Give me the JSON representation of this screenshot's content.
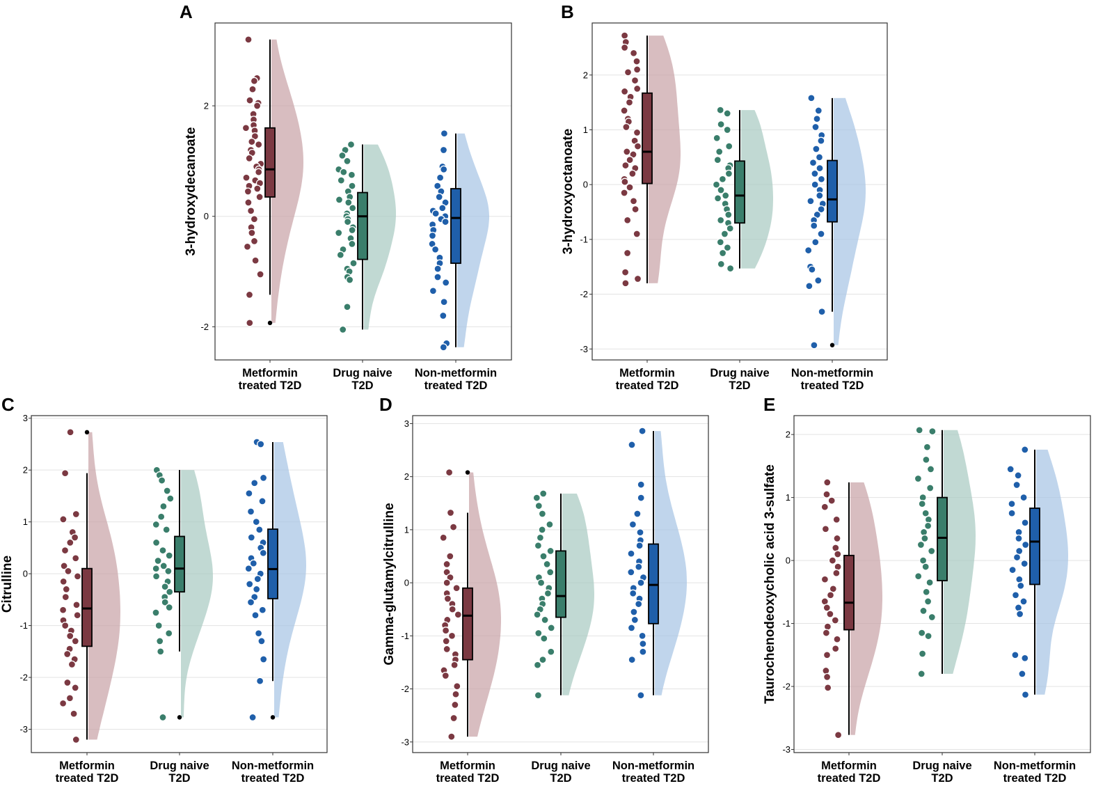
{
  "figure": {
    "title": ""
  },
  "colors": {
    "groups": [
      "#7B3942",
      "#3A7E6B",
      "#1F5FAA"
    ],
    "violins": [
      "#C9A3A8",
      "#A9CBC2",
      "#A7C5E5"
    ]
  },
  "groups": [
    "Metformin treated T2D",
    "Drug naive T2D",
    "Non-metformin treated T2D"
  ],
  "chart_data": [
    {
      "panel": "A",
      "type": "raincloud",
      "ylabel": "3-hydroxydecanoate",
      "ylim": [
        -2.6,
        3.5
      ],
      "yticks": [
        -2,
        0,
        2
      ],
      "categories": [
        "Metformin\ntreated T2D",
        "Drug naive\nT2D",
        "Non-metformin\ntreated T2D"
      ],
      "series": [
        {
          "name": "Metformin treated T2D",
          "box": {
            "q1": 0.35,
            "median": 0.85,
            "q3": 1.6,
            "whisker_low": -1.42,
            "whisker_high": 3.2
          },
          "outliers": [
            -1.93
          ],
          "points": [
            3.2,
            2.5,
            2.45,
            2.3,
            2.1,
            2.05,
            2.0,
            1.85,
            1.75,
            1.65,
            1.6,
            1.55,
            1.45,
            1.35,
            1.3,
            1.2,
            1.15,
            1.05,
            0.95,
            0.9,
            0.85,
            0.8,
            0.7,
            0.65,
            0.6,
            0.55,
            0.5,
            0.45,
            0.35,
            0.25,
            0.1,
            -0.05,
            -0.2,
            -0.3,
            -0.45,
            -0.55,
            -0.8,
            -1.05,
            -1.42,
            -1.93
          ]
        },
        {
          "name": "Drug naive T2D",
          "box": {
            "q1": -0.78,
            "median": 0.0,
            "q3": 0.43,
            "whisker_low": -2.05,
            "whisker_high": 1.3
          },
          "outliers": [],
          "points": [
            1.3,
            1.2,
            1.1,
            1.0,
            0.85,
            0.8,
            0.75,
            0.65,
            0.55,
            0.45,
            0.35,
            0.3,
            0.25,
            0.15,
            0.05,
            0.0,
            -0.05,
            -0.1,
            -0.2,
            -0.25,
            -0.3,
            -0.4,
            -0.5,
            -0.6,
            -0.7,
            -0.85,
            -0.95,
            -1.0,
            -1.1,
            -1.15,
            -1.64,
            -2.05
          ]
        },
        {
          "name": "Non-metformin treated T2D",
          "box": {
            "q1": -0.85,
            "median": -0.03,
            "q3": 0.5,
            "whisker_low": -2.37,
            "whisker_high": 1.5
          },
          "outliers": [],
          "points": [
            1.5,
            1.2,
            0.9,
            0.85,
            0.7,
            0.55,
            0.45,
            0.35,
            0.25,
            0.15,
            0.1,
            0.05,
            0.0,
            -0.05,
            -0.1,
            -0.15,
            -0.25,
            -0.35,
            -0.5,
            -0.6,
            -0.75,
            -0.85,
            -0.95,
            -1.1,
            -1.2,
            -1.35,
            -1.55,
            -1.8,
            -2.3,
            -2.37
          ]
        }
      ]
    },
    {
      "panel": "B",
      "type": "raincloud",
      "ylabel": "3-hydroxyoctanoate",
      "ylim": [
        -3.2,
        2.95
      ],
      "yticks": [
        -3,
        -2,
        -1,
        0,
        1,
        2
      ],
      "categories": [
        "Metformin\ntreated T2D",
        "Drug naive\nT2D",
        "Non-metformin\ntreated T2D"
      ],
      "series": [
        {
          "name": "Metformin treated T2D",
          "box": {
            "q1": 0.02,
            "median": 0.6,
            "q3": 1.67,
            "whisker_low": -1.8,
            "whisker_high": 2.72
          },
          "outliers": [],
          "points": [
            2.72,
            2.6,
            2.5,
            2.4,
            2.25,
            2.1,
            2.05,
            1.9,
            1.75,
            1.7,
            1.6,
            1.5,
            1.35,
            1.2,
            1.15,
            1.05,
            0.95,
            0.8,
            0.7,
            0.6,
            0.55,
            0.45,
            0.35,
            0.3,
            0.2,
            0.1,
            0.05,
            -0.05,
            -0.15,
            -0.3,
            -0.45,
            -0.65,
            -0.9,
            -1.25,
            -1.6,
            -1.72,
            -1.8
          ]
        },
        {
          "name": "Drug naive T2D",
          "box": {
            "q1": -0.7,
            "median": -0.2,
            "q3": 0.43,
            "whisker_low": -1.53,
            "whisker_high": 1.36
          },
          "outliers": [],
          "points": [
            1.36,
            1.3,
            1.1,
            1.0,
            0.85,
            0.7,
            0.6,
            0.45,
            0.35,
            0.3,
            0.2,
            0.1,
            0.0,
            -0.1,
            -0.2,
            -0.25,
            -0.35,
            -0.45,
            -0.55,
            -0.65,
            -0.7,
            -0.8,
            -0.9,
            -1.05,
            -1.15,
            -1.25,
            -1.45,
            -1.53
          ]
        },
        {
          "name": "Non-metformin treated T2D",
          "box": {
            "q1": -0.68,
            "median": -0.27,
            "q3": 0.44,
            "whisker_low": -2.32,
            "whisker_high": 1.58
          },
          "outliers": [
            -2.93
          ],
          "points": [
            1.58,
            1.35,
            1.2,
            1.05,
            0.9,
            0.8,
            0.65,
            0.5,
            0.4,
            0.3,
            0.2,
            0.1,
            0.0,
            -0.1,
            -0.2,
            -0.3,
            -0.35,
            -0.45,
            -0.55,
            -0.65,
            -0.75,
            -0.9,
            -1.05,
            -1.2,
            -1.5,
            -1.55,
            -1.75,
            -1.85,
            -2.32,
            -2.93
          ]
        }
      ]
    },
    {
      "panel": "C",
      "type": "raincloud",
      "ylabel": "Citrulline",
      "ylim": [
        -3.45,
        3.05
      ],
      "yticks": [
        -3,
        -2,
        -1,
        0,
        1,
        2,
        3
      ],
      "categories": [
        "Metformin\ntreated T2D",
        "Drug naive\nT2D",
        "Non-metformin\ntreated T2D"
      ],
      "series": [
        {
          "name": "Metformin treated T2D",
          "box": {
            "q1": -1.4,
            "median": -0.67,
            "q3": 0.1,
            "whisker_low": -3.2,
            "whisker_high": 1.94
          },
          "outliers": [
            2.73
          ],
          "points": [
            2.73,
            1.94,
            1.15,
            1.05,
            0.8,
            0.7,
            0.6,
            0.45,
            0.3,
            0.15,
            0.05,
            -0.05,
            -0.15,
            -0.3,
            -0.45,
            -0.6,
            -0.7,
            -0.8,
            -0.9,
            -1.0,
            -1.1,
            -1.2,
            -1.3,
            -1.45,
            -1.55,
            -1.65,
            -1.75,
            -2.1,
            -2.2,
            -2.4,
            -2.5,
            -2.7,
            -3.2
          ]
        },
        {
          "name": "Drug naive T2D",
          "box": {
            "q1": -0.35,
            "median": 0.1,
            "q3": 0.72,
            "whisker_low": -1.5,
            "whisker_high": 2.0
          },
          "outliers": [
            -2.77
          ],
          "points": [
            2.0,
            1.9,
            1.8,
            1.6,
            1.45,
            1.3,
            1.1,
            0.95,
            0.85,
            0.6,
            0.45,
            0.35,
            0.25,
            0.15,
            0.1,
            0.05,
            -0.05,
            -0.15,
            -0.25,
            -0.35,
            -0.45,
            -0.55,
            -0.65,
            -0.75,
            -1.0,
            -1.15,
            -1.3,
            -1.5,
            -2.77
          ]
        },
        {
          "name": "Non-metformin treated T2D",
          "box": {
            "q1": -0.48,
            "median": 0.09,
            "q3": 0.86,
            "whisker_low": -2.07,
            "whisker_high": 2.54
          },
          "outliers": [
            -2.77
          ],
          "points": [
            2.54,
            2.5,
            1.85,
            1.75,
            1.55,
            1.4,
            1.2,
            1.0,
            0.85,
            0.7,
            0.6,
            0.5,
            0.4,
            0.3,
            0.2,
            0.1,
            0.0,
            -0.1,
            -0.2,
            -0.3,
            -0.45,
            -0.55,
            -0.7,
            -0.8,
            -1.15,
            -1.3,
            -1.65,
            -2.07,
            -2.77
          ]
        }
      ]
    },
    {
      "panel": "D",
      "type": "raincloud",
      "ylabel": "Gamma-glutamylcitrulline",
      "ylim": [
        -3.2,
        3.15
      ],
      "yticks": [
        -3,
        -2,
        -1,
        0,
        1,
        2,
        3
      ],
      "categories": [
        "Metformin\ntreated T2D",
        "Drug naive\nT2D",
        "Non-metformin\ntreated T2D"
      ],
      "series": [
        {
          "name": "Metformin treated T2D",
          "box": {
            "q1": -1.45,
            "median": -0.62,
            "q3": -0.1,
            "whisker_low": -2.9,
            "whisker_high": 1.32
          },
          "outliers": [
            2.08
          ],
          "points": [
            2.08,
            1.32,
            1.05,
            0.85,
            0.5,
            0.35,
            0.2,
            0.1,
            0.0,
            -0.1,
            -0.2,
            -0.3,
            -0.4,
            -0.5,
            -0.6,
            -0.7,
            -0.8,
            -0.9,
            -1.0,
            -1.1,
            -1.25,
            -1.35,
            -1.45,
            -1.55,
            -1.65,
            -1.75,
            -1.95,
            -2.1,
            -2.3,
            -2.55,
            -2.9
          ]
        },
        {
          "name": "Drug naive T2D",
          "box": {
            "q1": -0.65,
            "median": -0.25,
            "q3": 0.6,
            "whisker_low": -2.12,
            "whisker_high": 1.68
          },
          "outliers": [],
          "points": [
            1.68,
            1.6,
            1.45,
            1.3,
            1.1,
            1.0,
            0.85,
            0.7,
            0.6,
            0.5,
            0.35,
            0.2,
            0.1,
            0.0,
            -0.1,
            -0.2,
            -0.3,
            -0.4,
            -0.5,
            -0.6,
            -0.7,
            -0.85,
            -0.95,
            -1.05,
            -1.3,
            -1.45,
            -1.55,
            -2.12
          ]
        },
        {
          "name": "Non-metformin treated T2D",
          "box": {
            "q1": -0.77,
            "median": -0.04,
            "q3": 0.73,
            "whisker_low": -2.12,
            "whisker_high": 2.86
          },
          "outliers": [],
          "points": [
            2.86,
            2.6,
            1.85,
            1.6,
            1.3,
            1.1,
            0.95,
            0.8,
            0.7,
            0.55,
            0.4,
            0.3,
            0.2,
            0.1,
            0.0,
            -0.1,
            -0.2,
            -0.3,
            -0.4,
            -0.55,
            -0.7,
            -0.85,
            -1.0,
            -1.15,
            -1.3,
            -1.45,
            -2.12
          ]
        }
      ]
    },
    {
      "panel": "E",
      "type": "raincloud",
      "ylabel": "Taurochenodeoxycholic acid 3-sulfate",
      "ylim": [
        -3.05,
        2.3
      ],
      "yticks": [
        -3,
        -2,
        -1,
        0,
        1,
        2
      ],
      "categories": [
        "Metformin\ntreated T2D",
        "Drug naive\nT2D",
        "Non-metformin\ntreated T2D"
      ],
      "series": [
        {
          "name": "Metformin treated T2D",
          "box": {
            "q1": -1.1,
            "median": -0.67,
            "q3": 0.08,
            "whisker_low": -2.77,
            "whisker_high": 1.24
          },
          "outliers": [],
          "points": [
            1.24,
            1.05,
            0.95,
            0.85,
            0.65,
            0.5,
            0.35,
            0.2,
            0.1,
            0.0,
            -0.1,
            -0.2,
            -0.3,
            -0.45,
            -0.55,
            -0.65,
            -0.75,
            -0.85,
            -0.95,
            -1.05,
            -1.15,
            -1.25,
            -1.4,
            -1.5,
            -1.75,
            -1.85,
            -2.02,
            -2.77
          ]
        },
        {
          "name": "Drug naive T2D",
          "box": {
            "q1": -0.32,
            "median": 0.36,
            "q3": 1.0,
            "whisker_low": -1.8,
            "whisker_high": 2.07
          },
          "outliers": [],
          "points": [
            2.07,
            2.05,
            1.8,
            1.6,
            1.45,
            1.3,
            1.15,
            1.0,
            0.9,
            0.75,
            0.65,
            0.55,
            0.45,
            0.35,
            0.25,
            0.15,
            0.0,
            -0.1,
            -0.25,
            -0.35,
            -0.5,
            -0.65,
            -0.8,
            -0.9,
            -1.15,
            -1.2,
            -1.48,
            -1.8
          ]
        },
        {
          "name": "Non-metformin treated T2D",
          "box": {
            "q1": -0.38,
            "median": 0.3,
            "q3": 0.83,
            "whisker_low": -2.13,
            "whisker_high": 1.76
          },
          "outliers": [],
          "points": [
            1.76,
            1.45,
            1.35,
            1.2,
            1.0,
            0.9,
            0.75,
            0.6,
            0.45,
            0.35,
            0.25,
            0.15,
            0.05,
            -0.05,
            -0.15,
            -0.3,
            -0.4,
            -0.55,
            -0.65,
            -0.75,
            -0.85,
            -1.5,
            -1.55,
            -1.8,
            -2.13
          ]
        }
      ]
    }
  ]
}
